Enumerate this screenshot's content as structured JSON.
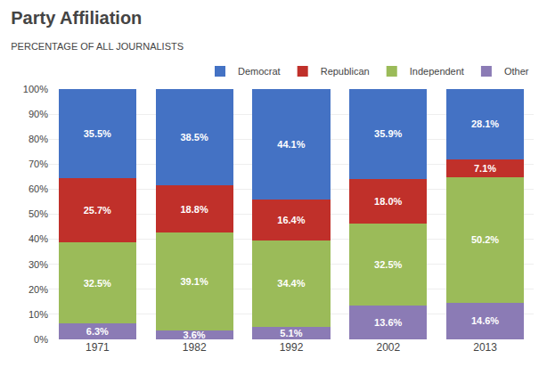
{
  "chart_data": {
    "type": "bar",
    "title": "Party Affiliation",
    "subtitle": "PERCENTAGE OF ALL JOURNALISTS",
    "categories": [
      "1971",
      "1982",
      "1992",
      "2002",
      "2013"
    ],
    "stacked": true,
    "data_labels": true,
    "series": [
      {
        "name": "Other",
        "color": "#8B7BB5",
        "values": [
          6.3,
          3.6,
          5.1,
          13.6,
          14.6
        ],
        "value_labels": [
          "6.3%",
          "3.6%",
          "5.1%",
          "13.6%",
          "14.6%"
        ]
      },
      {
        "name": "Independent",
        "color": "#9BBB59",
        "values": [
          32.5,
          39.1,
          34.4,
          32.5,
          50.2
        ],
        "value_labels": [
          "32.5%",
          "39.1%",
          "34.4%",
          "32.5%",
          "50.2%"
        ]
      },
      {
        "name": "Republican",
        "color": "#C0302A",
        "values": [
          25.7,
          18.8,
          16.4,
          18.0,
          7.1
        ],
        "value_labels": [
          "25.7%",
          "18.8%",
          "16.4%",
          "18.0%",
          "7.1%"
        ]
      },
      {
        "name": "Democrat",
        "color": "#4472C4",
        "values": [
          35.5,
          38.5,
          44.1,
          35.9,
          28.1
        ],
        "value_labels": [
          "35.5%",
          "38.5%",
          "44.1%",
          "35.9%",
          "28.1%"
        ]
      }
    ],
    "ylim": [
      0,
      100
    ],
    "yticks": [
      {
        "value": 0,
        "label": "0%"
      },
      {
        "value": 10,
        "label": "10%"
      },
      {
        "value": 20,
        "label": "20%"
      },
      {
        "value": 30,
        "label": "30%"
      },
      {
        "value": 40,
        "label": "40%"
      },
      {
        "value": 50,
        "label": "50%"
      },
      {
        "value": 60,
        "label": "60%"
      },
      {
        "value": 70,
        "label": "70%"
      },
      {
        "value": 80,
        "label": "80%"
      },
      {
        "value": 90,
        "label": "90%"
      },
      {
        "value": 100,
        "label": "100%"
      }
    ],
    "grid": true,
    "legend": "top right"
  }
}
